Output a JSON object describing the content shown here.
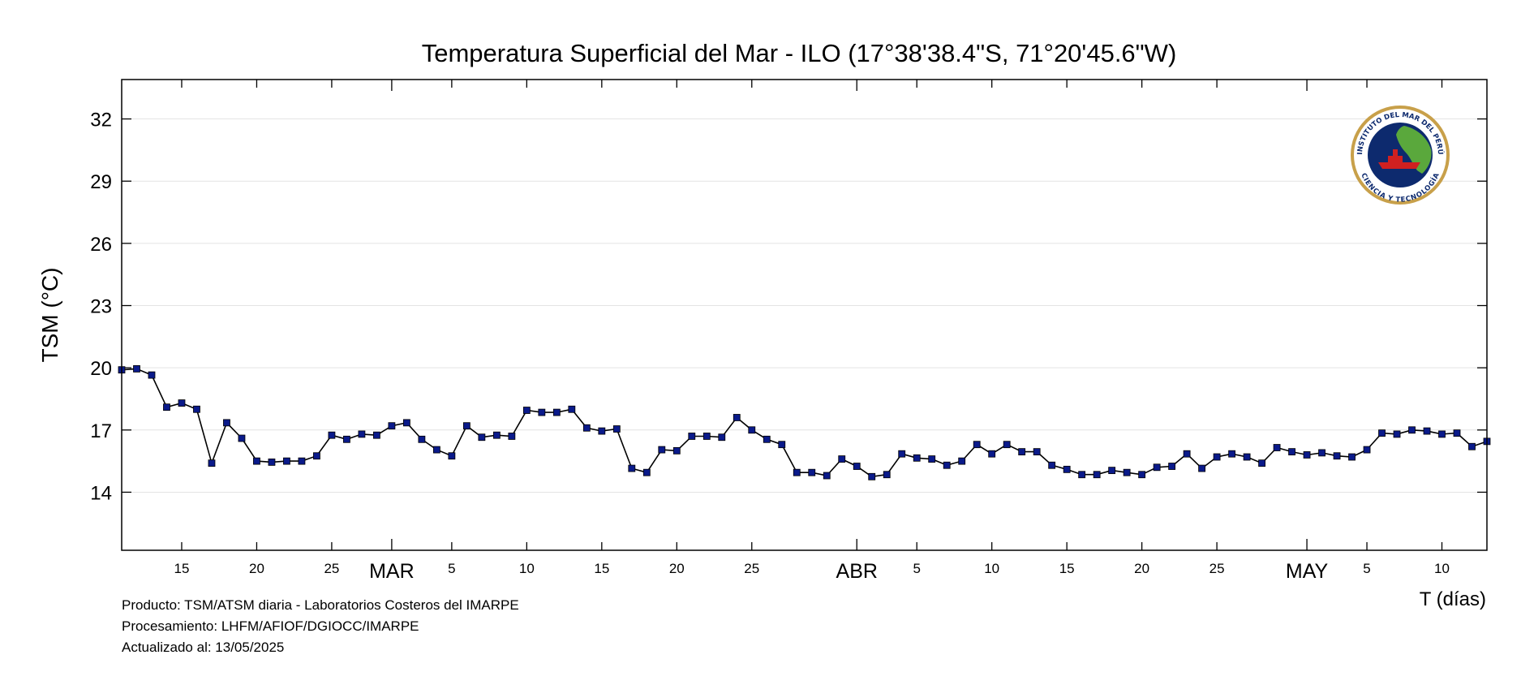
{
  "chart_data": {
    "type": "line",
    "title": "Temperatura Superficial del Mar - ILO (17°38'38.4\"S, 71°20'45.6\"W)",
    "ylabel": "TSM (°C)",
    "xlabel": "T (días)",
    "ylim": [
      11.2,
      33.9
    ],
    "yticks": [
      14,
      17,
      20,
      23,
      26,
      29,
      32
    ],
    "grid": true,
    "legend": "none",
    "marker_color": "#0a1a8a",
    "line_color": "#000000",
    "x_tick_labels": [
      {
        "date": "2025-02-15",
        "label": "15"
      },
      {
        "date": "2025-02-20",
        "label": "20"
      },
      {
        "date": "2025-02-25",
        "label": "25"
      },
      {
        "date": "2025-03-01",
        "label": "MAR"
      },
      {
        "date": "2025-03-05",
        "label": "5"
      },
      {
        "date": "2025-03-10",
        "label": "10"
      },
      {
        "date": "2025-03-15",
        "label": "15"
      },
      {
        "date": "2025-03-20",
        "label": "20"
      },
      {
        "date": "2025-03-25",
        "label": "25"
      },
      {
        "date": "2025-04-01",
        "label": "ABR"
      },
      {
        "date": "2025-04-05",
        "label": "5"
      },
      {
        "date": "2025-04-10",
        "label": "10"
      },
      {
        "date": "2025-04-15",
        "label": "15"
      },
      {
        "date": "2025-04-20",
        "label": "20"
      },
      {
        "date": "2025-04-25",
        "label": "25"
      },
      {
        "date": "2025-05-01",
        "label": "MAY"
      },
      {
        "date": "2025-05-05",
        "label": "5"
      },
      {
        "date": "2025-05-10",
        "label": "10"
      }
    ],
    "x": [
      "2025-02-11",
      "2025-02-12",
      "2025-02-13",
      "2025-02-14",
      "2025-02-15",
      "2025-02-16",
      "2025-02-17",
      "2025-02-18",
      "2025-02-19",
      "2025-02-20",
      "2025-02-21",
      "2025-02-22",
      "2025-02-23",
      "2025-02-24",
      "2025-02-25",
      "2025-02-26",
      "2025-02-27",
      "2025-02-28",
      "2025-03-01",
      "2025-03-02",
      "2025-03-03",
      "2025-03-04",
      "2025-03-05",
      "2025-03-06",
      "2025-03-07",
      "2025-03-08",
      "2025-03-09",
      "2025-03-10",
      "2025-03-11",
      "2025-03-12",
      "2025-03-13",
      "2025-03-14",
      "2025-03-15",
      "2025-03-16",
      "2025-03-17",
      "2025-03-18",
      "2025-03-19",
      "2025-03-20",
      "2025-03-21",
      "2025-03-22",
      "2025-03-23",
      "2025-03-24",
      "2025-03-25",
      "2025-03-26",
      "2025-03-27",
      "2025-03-28",
      "2025-03-29",
      "2025-03-30",
      "2025-03-31",
      "2025-04-01",
      "2025-04-02",
      "2025-04-03",
      "2025-04-04",
      "2025-04-05",
      "2025-04-06",
      "2025-04-07",
      "2025-04-08",
      "2025-04-09",
      "2025-04-10",
      "2025-04-11",
      "2025-04-12",
      "2025-04-13",
      "2025-04-14",
      "2025-04-15",
      "2025-04-16",
      "2025-04-17",
      "2025-04-18",
      "2025-04-19",
      "2025-04-20",
      "2025-04-21",
      "2025-04-22",
      "2025-04-23",
      "2025-04-24",
      "2025-04-25",
      "2025-04-26",
      "2025-04-27",
      "2025-04-28",
      "2025-04-29",
      "2025-04-30",
      "2025-05-01",
      "2025-05-02",
      "2025-05-03",
      "2025-05-04",
      "2025-05-05",
      "2025-05-06",
      "2025-05-07",
      "2025-05-08",
      "2025-05-09",
      "2025-05-10",
      "2025-05-11",
      "2025-05-12",
      "2025-05-13"
    ],
    "series": [
      {
        "values": [
          19.9,
          19.95,
          19.65,
          18.1,
          18.3,
          18.0,
          15.4,
          17.35,
          16.6,
          15.5,
          15.45,
          15.5,
          15.5,
          15.75,
          16.75,
          16.55,
          16.8,
          16.75,
          17.2,
          17.35,
          16.55,
          16.05,
          15.75,
          17.2,
          16.65,
          16.75,
          16.7,
          17.95,
          17.85,
          17.85,
          18.0,
          17.1,
          16.95,
          17.05,
          15.15,
          14.95,
          16.05,
          16.0,
          16.7,
          16.7,
          16.65,
          17.6,
          17.0,
          16.55,
          16.3,
          14.95,
          14.95,
          14.8,
          15.6,
          15.25,
          14.75,
          14.85,
          15.85,
          15.65,
          15.6,
          15.3,
          15.5,
          16.3,
          15.85,
          16.3,
          15.95,
          15.95,
          15.3,
          15.1,
          14.85,
          14.85,
          15.05,
          14.95,
          14.85,
          15.2,
          15.25,
          15.85,
          15.15,
          15.7,
          15.85,
          15.7,
          15.4,
          16.15,
          15.95,
          15.8,
          15.9,
          15.75,
          15.7,
          16.05,
          16.85,
          16.8,
          17.0,
          16.95,
          16.8,
          16.85,
          16.2,
          16.45
        ]
      }
    ]
  },
  "footer": {
    "line1": "Producto: TSM/ATSM diaria - Laboratorios Costeros del IMARPE",
    "line2": "Procesamiento: LHFM/AFIOF/DGIOCC/IMARPE",
    "line3": "Actualizado al: 13/05/2025"
  },
  "logo": {
    "top_text": "INSTITUTO DEL MAR DEL PERÚ",
    "bottom_text": "CIENCIA Y TECNOLOGÍA",
    "ring_color": "#c8a04a",
    "navy_color": "#0d2a6e",
    "green_color": "#5aa83c",
    "red_color": "#d02020"
  }
}
